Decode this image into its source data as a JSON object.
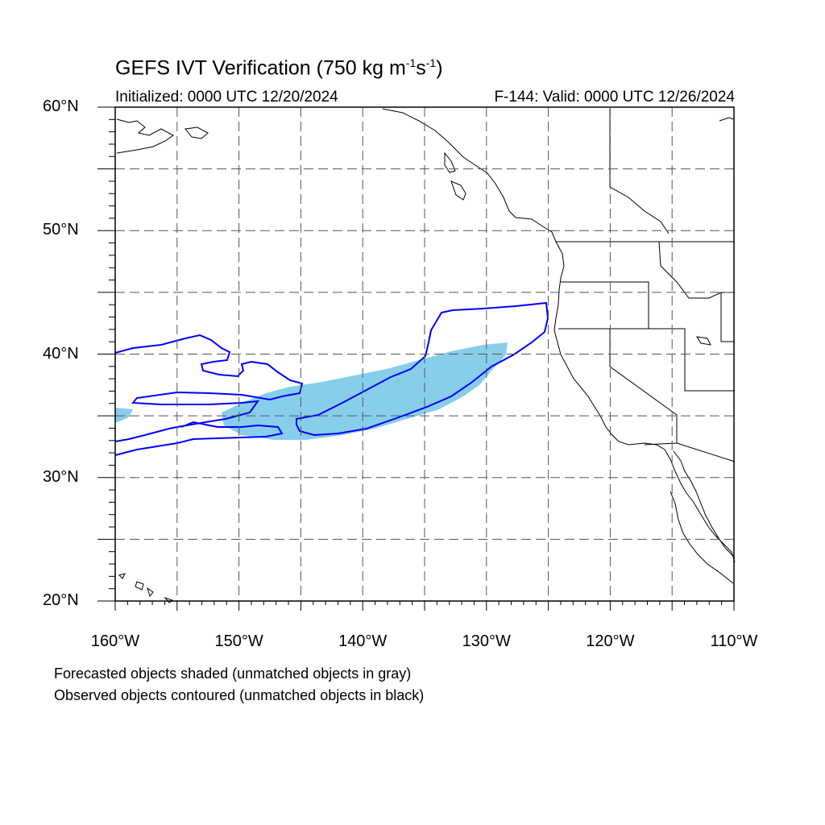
{
  "title_main": "GEFS IVT Verification (750 kg m",
  "title_exp1": "-1",
  "title_mid": "s",
  "title_exp2": "-1",
  "title_end": ")",
  "initialized": "Initialized: 0000 UTC 12/20/2024",
  "valid": "F-144: Valid: 0000 UTC 12/26/2024",
  "lat_labels": [
    "60°N",
    "50°N",
    "40°N",
    "30°N",
    "20°N"
  ],
  "lon_labels": [
    "160°W",
    "150°W",
    "140°W",
    "130°W",
    "120°W",
    "110°W"
  ],
  "notes": [
    "Forecasted objects shaded (unmatched objects in gray)",
    "Observed objects contoured (unmatched objects in black)"
  ],
  "colors": {
    "forecast_fill": "#87ceeb",
    "observed_contour": "#0000ff",
    "coastline": "#000000",
    "grid": "#555555"
  },
  "map_extent": {
    "lon": [
      -160,
      -110
    ],
    "lat": [
      20,
      60
    ]
  }
}
